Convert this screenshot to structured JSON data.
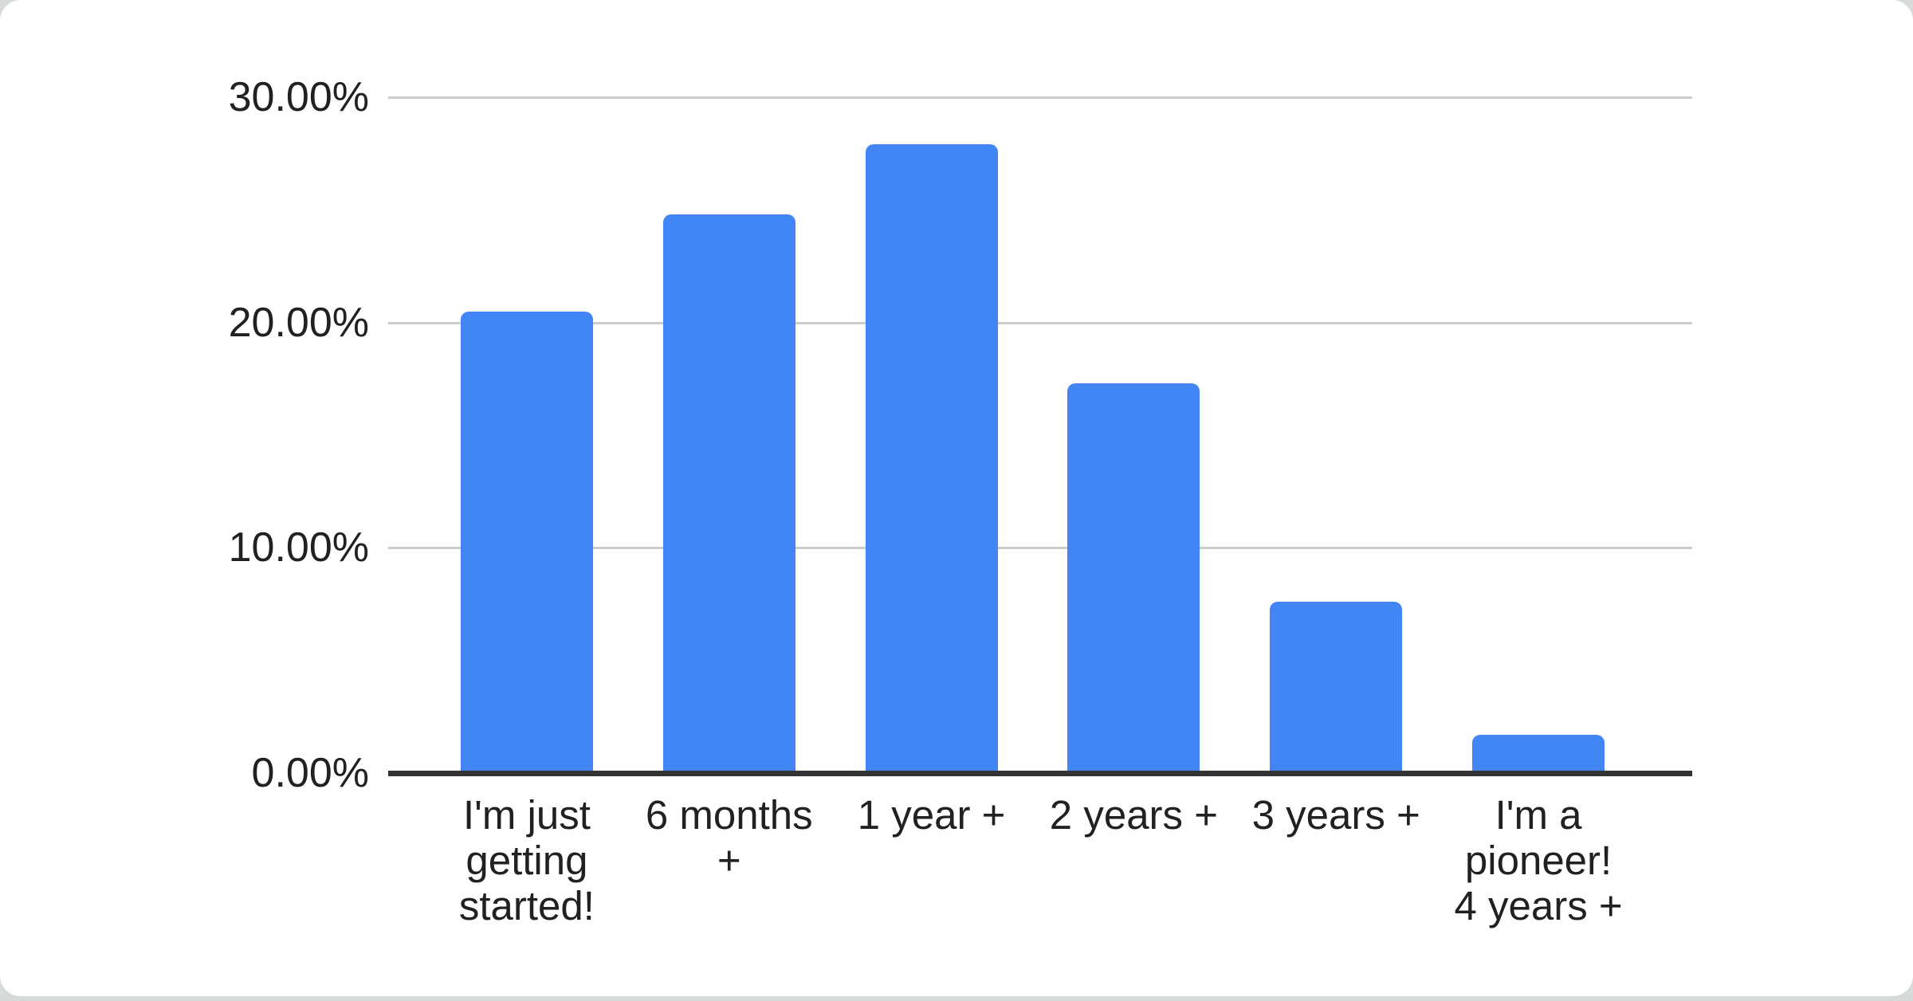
{
  "page": {
    "background_color": "#d6dbd9",
    "card_background_color": "#ffffff"
  },
  "chart_data": {
    "type": "bar",
    "title": "",
    "xlabel": "",
    "ylabel": "",
    "categories": [
      "I'm just getting started!",
      "6 months +",
      "1 year +",
      "2 years +",
      "3 years +",
      "I'm a pioneer! 4 years +"
    ],
    "category_tick_display": [
      "I'm just\ngetting\nstarted!",
      "6 months\n+",
      "1 year +",
      "2 years +",
      "3 years +",
      "I'm a\npioneer!\n4 years +"
    ],
    "values": [
      20.5,
      24.8,
      27.9,
      17.3,
      7.6,
      1.7
    ],
    "value_unit": "%",
    "ylim": [
      0,
      30
    ],
    "y_ticks": [
      {
        "value": 0,
        "label": "0.00%"
      },
      {
        "value": 10,
        "label": "10.00%"
      },
      {
        "value": 20,
        "label": "20.00%"
      },
      {
        "value": 30,
        "label": "30.00%"
      }
    ],
    "grid": true,
    "legend_position": "none",
    "colors": {
      "bar": "#4285f4",
      "gridline": "#cccccc",
      "axis_line": "#333333",
      "label_text": "#212121"
    }
  }
}
